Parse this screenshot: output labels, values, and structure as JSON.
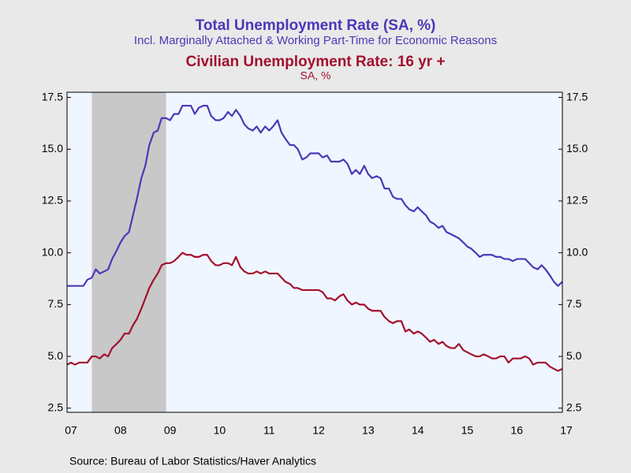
{
  "chart_data": {
    "type": "line",
    "source": "Source:  Bureau of Labor Statistics/Haver Analytics",
    "xlim": [
      2007.42,
      2017.42
    ],
    "xticks": [
      {
        "value": 2007.5,
        "label": "07"
      },
      {
        "value": 2008.5,
        "label": "08"
      },
      {
        "value": 2009.5,
        "label": "09"
      },
      {
        "value": 2010.5,
        "label": "10"
      },
      {
        "value": 2011.5,
        "label": "11"
      },
      {
        "value": 2012.5,
        "label": "12"
      },
      {
        "value": 2013.5,
        "label": "13"
      },
      {
        "value": 2014.5,
        "label": "14"
      },
      {
        "value": 2015.5,
        "label": "15"
      },
      {
        "value": 2016.5,
        "label": "16"
      },
      {
        "value": 2017.5,
        "label": "17"
      }
    ],
    "ylim": [
      2.3,
      17.75
    ],
    "yticks": [
      2.5,
      {
        "value": 5,
        "label": "5.0"
      },
      7.5,
      {
        "value": 10,
        "label": "10.0"
      },
      12.5,
      {
        "value": 15,
        "label": "15.0"
      },
      17.5
    ],
    "y2lim": [
      2.3,
      17.75
    ],
    "y2ticks": [
      2.5,
      {
        "value": 5,
        "label": "5.0"
      },
      7.5,
      {
        "value": 10,
        "label": "10.0"
      },
      12.5,
      {
        "value": 15,
        "label": "15.0"
      },
      17.5
    ],
    "shaded_periods": [
      [
        2007.92,
        2009.42
      ]
    ],
    "shade_color": "#c8c8c8",
    "plot_background": "#f0f6ff",
    "x": [
      2007.42,
      2007.5,
      2007.58,
      2007.67,
      2007.75,
      2007.83,
      2007.92,
      2008.0,
      2008.08,
      2008.17,
      2008.25,
      2008.33,
      2008.42,
      2008.5,
      2008.58,
      2008.67,
      2008.75,
      2008.83,
      2008.92,
      2009.0,
      2009.08,
      2009.17,
      2009.25,
      2009.33,
      2009.42,
      2009.5,
      2009.58,
      2009.67,
      2009.75,
      2009.83,
      2009.92,
      2010.0,
      2010.08,
      2010.17,
      2010.25,
      2010.33,
      2010.42,
      2010.5,
      2010.58,
      2010.67,
      2010.75,
      2010.83,
      2010.92,
      2011.0,
      2011.08,
      2011.17,
      2011.25,
      2011.33,
      2011.42,
      2011.5,
      2011.58,
      2011.67,
      2011.75,
      2011.83,
      2011.92,
      2012.0,
      2012.08,
      2012.17,
      2012.25,
      2012.33,
      2012.42,
      2012.5,
      2012.58,
      2012.67,
      2012.75,
      2012.83,
      2012.92,
      2013.0,
      2013.08,
      2013.17,
      2013.25,
      2013.33,
      2013.42,
      2013.5,
      2013.58,
      2013.67,
      2013.75,
      2013.83,
      2013.92,
      2014.0,
      2014.08,
      2014.17,
      2014.25,
      2014.33,
      2014.42,
      2014.5,
      2014.58,
      2014.67,
      2014.75,
      2014.83,
      2014.92,
      2015.0,
      2015.08,
      2015.17,
      2015.25,
      2015.33,
      2015.42,
      2015.5,
      2015.58,
      2015.67,
      2015.75,
      2015.83,
      2015.92,
      2016.0,
      2016.08,
      2016.17,
      2016.25,
      2016.33,
      2016.42,
      2016.5,
      2016.58,
      2016.67,
      2016.75,
      2016.83,
      2016.92,
      2017.0,
      2017.08,
      2017.17,
      2017.25,
      2017.33,
      2017.42
    ],
    "series": [
      {
        "name": "Total Unemployment Rate (SA, %)",
        "subtitle": "Incl. Marginally Attached & Working Part-Time for Economic Reasons",
        "color": "#4b38b8",
        "values": [
          8.4,
          8.4,
          8.4,
          8.4,
          8.4,
          8.7,
          8.8,
          9.2,
          9.0,
          9.1,
          9.2,
          9.7,
          10.1,
          10.5,
          10.8,
          11.0,
          11.8,
          12.6,
          13.6,
          14.2,
          15.2,
          15.8,
          15.9,
          16.5,
          16.5,
          16.4,
          16.7,
          16.7,
          17.1,
          17.1,
          17.1,
          16.7,
          17.0,
          17.1,
          17.1,
          16.6,
          16.4,
          16.4,
          16.5,
          16.8,
          16.6,
          16.9,
          16.6,
          16.2,
          16.0,
          15.9,
          16.1,
          15.8,
          16.1,
          15.9,
          16.1,
          16.4,
          15.8,
          15.5,
          15.2,
          15.2,
          15.0,
          14.5,
          14.6,
          14.8,
          14.8,
          14.8,
          14.6,
          14.7,
          14.4,
          14.4,
          14.4,
          14.5,
          14.3,
          13.8,
          14.0,
          13.8,
          14.2,
          13.8,
          13.6,
          13.7,
          13.6,
          13.1,
          13.1,
          12.7,
          12.6,
          12.6,
          12.3,
          12.1,
          12.0,
          12.2,
          12.0,
          11.8,
          11.5,
          11.4,
          11.2,
          11.3,
          11.0,
          10.9,
          10.8,
          10.7,
          10.5,
          10.3,
          10.2,
          10.0,
          9.8,
          9.9,
          9.9,
          9.9,
          9.8,
          9.8,
          9.7,
          9.7,
          9.6,
          9.7,
          9.7,
          9.7,
          9.5,
          9.3,
          9.2,
          9.4,
          9.2,
          8.9,
          8.6,
          8.4,
          8.6
        ]
      },
      {
        "name": "Civilian Unemployment Rate: 16 yr +",
        "subtitle": "SA, %",
        "color": "#a3102f",
        "values": [
          4.6,
          4.7,
          4.6,
          4.7,
          4.7,
          4.7,
          5.0,
          5.0,
          4.9,
          5.1,
          5.0,
          5.4,
          5.6,
          5.8,
          6.1,
          6.1,
          6.5,
          6.8,
          7.3,
          7.8,
          8.3,
          8.7,
          9.0,
          9.4,
          9.5,
          9.5,
          9.6,
          9.8,
          10.0,
          9.9,
          9.9,
          9.8,
          9.8,
          9.9,
          9.9,
          9.6,
          9.4,
          9.4,
          9.5,
          9.5,
          9.4,
          9.8,
          9.3,
          9.1,
          9.0,
          9.0,
          9.1,
          9.0,
          9.1,
          9.0,
          9.0,
          9.0,
          8.8,
          8.6,
          8.5,
          8.3,
          8.3,
          8.2,
          8.2,
          8.2,
          8.2,
          8.2,
          8.1,
          7.8,
          7.8,
          7.7,
          7.9,
          8.0,
          7.7,
          7.5,
          7.6,
          7.5,
          7.5,
          7.3,
          7.2,
          7.2,
          7.2,
          6.9,
          6.7,
          6.6,
          6.7,
          6.7,
          6.2,
          6.3,
          6.1,
          6.2,
          6.1,
          5.9,
          5.7,
          5.8,
          5.6,
          5.7,
          5.5,
          5.4,
          5.4,
          5.6,
          5.3,
          5.2,
          5.1,
          5.0,
          5.0,
          5.1,
          5.0,
          4.9,
          4.9,
          5.0,
          5.0,
          4.7,
          4.9,
          4.9,
          4.9,
          5.0,
          4.9,
          4.6,
          4.7,
          4.7,
          4.7,
          4.5,
          4.4,
          4.3,
          4.4
        ]
      }
    ]
  }
}
